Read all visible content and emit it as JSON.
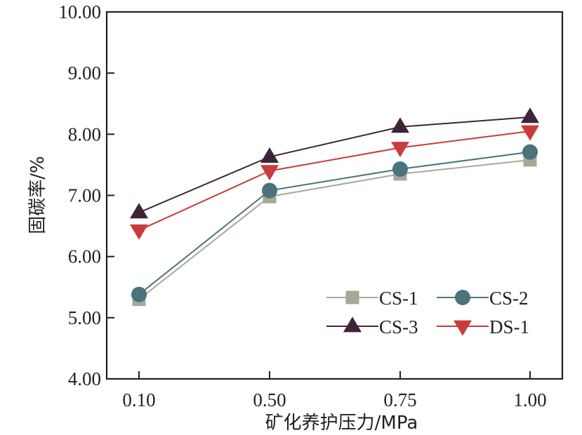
{
  "chart_data": {
    "type": "line",
    "title": "",
    "xlabel": "矿化养护压力/MPa",
    "ylabel": "固碳率/%",
    "categories": [
      "0.10",
      "0.50",
      "0.75",
      "1.00"
    ],
    "ylim": [
      4.0,
      10.0
    ],
    "yticks": [
      "4.00",
      "5.00",
      "6.00",
      "7.00",
      "8.00",
      "9.00",
      "10.00"
    ],
    "grid": false,
    "legend_position": "lower-right",
    "series": [
      {
        "name": "CS-1",
        "marker": "square",
        "color": "#a8a898",
        "values": [
          5.3,
          6.98,
          7.35,
          7.58
        ]
      },
      {
        "name": "CS-2",
        "marker": "circle",
        "color": "#4a737b",
        "values": [
          5.38,
          7.08,
          7.43,
          7.71
        ]
      },
      {
        "name": "CS-3",
        "marker": "triangle-up",
        "color": "#3d2438",
        "values": [
          6.72,
          7.63,
          8.12,
          8.28
        ]
      },
      {
        "name": "DS-1",
        "marker": "triangle-down",
        "color": "#c83c3c",
        "values": [
          6.43,
          7.4,
          7.78,
          8.05
        ]
      }
    ]
  },
  "axis_color": "#231f20"
}
